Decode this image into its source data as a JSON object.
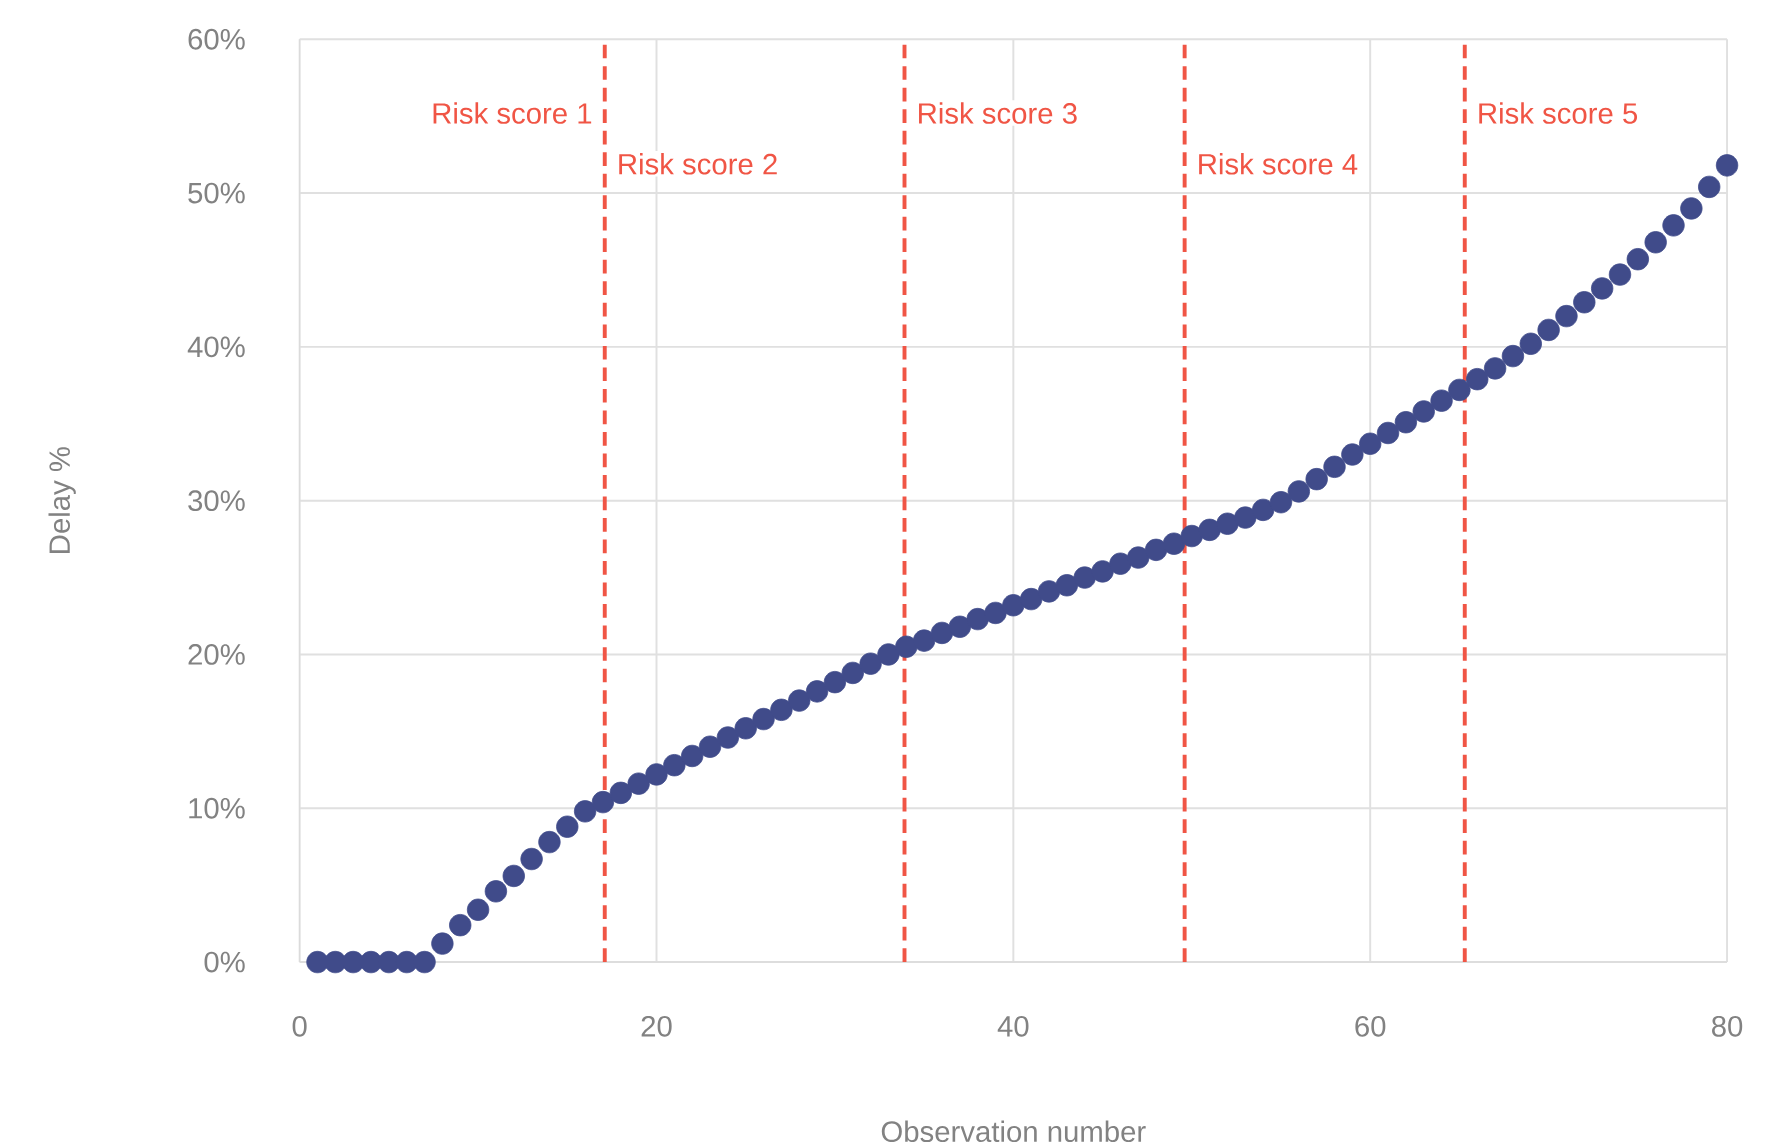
{
  "chart_data": {
    "type": "scatter",
    "xlabel": "Observation number",
    "ylabel": "Delay %",
    "x": [
      1,
      2,
      3,
      4,
      5,
      6,
      7,
      8,
      9,
      10,
      11,
      12,
      13,
      14,
      15,
      16,
      17,
      18,
      19,
      20,
      21,
      22,
      23,
      24,
      25,
      26,
      27,
      28,
      29,
      30,
      31,
      32,
      33,
      34,
      35,
      36,
      37,
      38,
      39,
      40,
      41,
      42,
      43,
      44,
      45,
      46,
      47,
      48,
      49,
      50,
      51,
      52,
      53,
      54,
      55,
      56,
      57,
      58,
      59,
      60,
      61,
      62,
      63,
      64,
      65,
      66,
      67,
      68,
      69,
      70,
      71,
      72,
      73,
      74,
      75,
      76,
      77,
      78,
      79,
      80
    ],
    "series": [
      {
        "color": "#404b8a",
        "values": [
          0,
          0,
          0,
          0,
          0,
          0,
          0,
          1.2,
          2.4,
          3.4,
          4.6,
          5.6,
          6.7,
          7.8,
          8.8,
          9.8,
          10.4,
          11.0,
          11.6,
          12.2,
          12.8,
          13.4,
          14.0,
          14.6,
          15.2,
          15.8,
          16.4,
          17.0,
          17.6,
          18.2,
          18.8,
          19.4,
          20.0,
          20.5,
          20.9,
          21.4,
          21.8,
          22.3,
          22.7,
          23.2,
          23.6,
          24.1,
          24.5,
          25.0,
          25.4,
          25.9,
          26.3,
          26.8,
          27.2,
          27.7,
          28.1,
          28.5,
          28.9,
          29.4,
          29.9,
          30.6,
          31.4,
          32.2,
          33.0,
          33.7,
          34.4,
          35.1,
          35.8,
          36.5,
          37.2,
          37.9,
          38.6,
          39.4,
          40.2,
          41.1,
          42.0,
          42.9,
          43.8,
          44.7,
          45.7,
          46.8,
          47.9,
          49.0,
          50.4,
          51.8
        ]
      }
    ],
    "xlim": [
      0,
      80
    ],
    "xticks": [
      0,
      20,
      40,
      60,
      80
    ],
    "ylim": [
      0,
      60
    ],
    "yticks": [
      {
        "value": 0,
        "label": "0%"
      },
      {
        "value": 10,
        "label": "10%"
      },
      {
        "value": 20,
        "label": "20%"
      },
      {
        "value": 30,
        "label": "30%"
      },
      {
        "value": 40,
        "label": "40%"
      },
      {
        "value": 50,
        "label": "50%"
      },
      {
        "value": 60,
        "label": "60%"
      }
    ],
    "grid": true,
    "ref_lines": [
      {
        "axis": "x",
        "value": 17.1,
        "color": "#f05545",
        "line_style": "dashed"
      },
      {
        "axis": "x",
        "value": 33.9,
        "color": "#f05545",
        "line_style": "dashed"
      },
      {
        "axis": "x",
        "value": 49.6,
        "color": "#f05545",
        "line_style": "dashed"
      },
      {
        "axis": "x",
        "value": 65.3,
        "color": "#f05545",
        "line_style": "dashed"
      }
    ],
    "annotations": [
      "Risk score 1",
      "Risk score 2",
      "Risk score 3",
      "Risk score 4",
      "Risk score 5"
    ]
  }
}
